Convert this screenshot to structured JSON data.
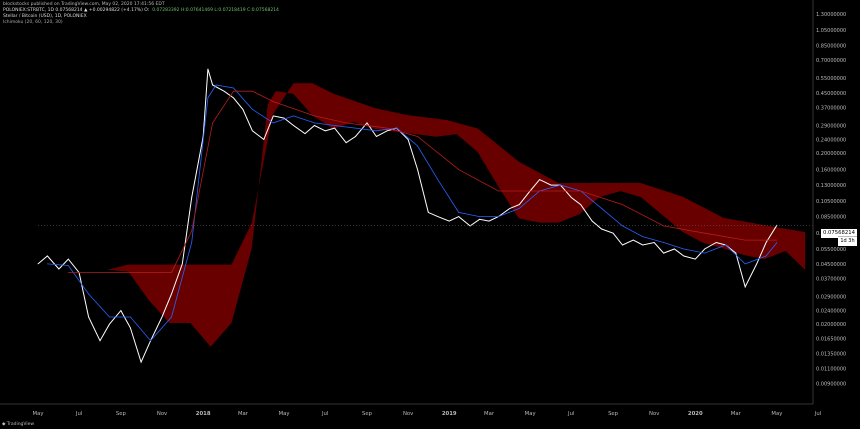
{
  "header": {
    "line1": "blockstocks published on TradingView.com, May 02, 2020 17:41:56 EDT",
    "line2": "POLONIEX:STRBTC, 1D  0.07568214 ▲ +0.00294822 (+4.17%)  O:",
    "line2_values": "0.07283392  H:0.07641469  L:0.07218419  C:0.07568214",
    "line3": "Stellar / Bitcoin (USD), 1D, POLONIEX",
    "line4": "Ichimoku (20, 60, 120, 30)"
  },
  "price_label": "0.07568214",
  "time_label": "1d 3h",
  "logo_text": "TradingView",
  "colors": {
    "background": "#000000",
    "price_line": "#ffffff",
    "conversion_line": "#2962ff",
    "base_line": "#b71c1c",
    "lagging_span": "#2e7d32",
    "cloud_bearish": "#7a0000",
    "cloud_bullish": "#1b5e20"
  },
  "chart_data": {
    "type": "line",
    "scale": "log",
    "ylim": [
      0.0076,
      1.3
    ],
    "y_ticks": [
      "1.30000000",
      "1.05000000",
      "0.85000000",
      "0.70000000",
      "0.55000000",
      "0.45000000",
      "0.37000000",
      "0.29000000",
      "0.24000000",
      "0.20000000",
      "0.16000000",
      "0.13000000",
      "0.10500000",
      "0.08500000",
      "0.06800000",
      "0.05500000",
      "0.04500000",
      "0.03700000",
      "0.02900000",
      "0.02400000",
      "0.02000000",
      "0.01650000",
      "0.01350000",
      "0.01100000",
      "0.00900000"
    ],
    "x_ticks": [
      {
        "label": "May",
        "date": "2017-05"
      },
      {
        "label": "Jul",
        "date": "2017-07"
      },
      {
        "label": "Sep",
        "date": "2017-09"
      },
      {
        "label": "Nov",
        "date": "2017-11"
      },
      {
        "label": "2018",
        "date": "2018-01"
      },
      {
        "label": "Mar",
        "date": "2018-03"
      },
      {
        "label": "May",
        "date": "2018-05"
      },
      {
        "label": "Jul",
        "date": "2018-07"
      },
      {
        "label": "Sep",
        "date": "2018-09"
      },
      {
        "label": "Nov",
        "date": "2018-11"
      },
      {
        "label": "2019",
        "date": "2019-01"
      },
      {
        "label": "Mar",
        "date": "2019-03"
      },
      {
        "label": "May",
        "date": "2019-05"
      },
      {
        "label": "Jul",
        "date": "2019-07"
      },
      {
        "label": "Sep",
        "date": "2019-09"
      },
      {
        "label": "Nov",
        "date": "2019-11"
      },
      {
        "label": "2020",
        "date": "2020-01"
      },
      {
        "label": "Mar",
        "date": "2020-03"
      },
      {
        "label": "May",
        "date": "2020-05"
      },
      {
        "label": "Jul",
        "date": "2020-07"
      }
    ],
    "last_price": 0.07568214,
    "series": [
      {
        "name": "",
        "role": "price",
        "x": [
          "2017-05-01",
          "2017-05-15",
          "2017-06-01",
          "2017-06-15",
          "2017-07-01",
          "2017-07-15",
          "2017-08-01",
          "2017-08-15",
          "2017-09-01",
          "2017-09-15",
          "2017-10-01",
          "2017-10-15",
          "2017-11-01",
          "2017-11-15",
          "2017-12-01",
          "2017-12-15",
          "2018-01-01",
          "2018-01-08",
          "2018-01-15",
          "2018-02-01",
          "2018-02-15",
          "2018-03-01",
          "2018-03-15",
          "2018-04-01",
          "2018-04-15",
          "2018-05-01",
          "2018-05-15",
          "2018-06-01",
          "2018-06-15",
          "2018-07-01",
          "2018-07-15",
          "2018-08-01",
          "2018-08-15",
          "2018-09-01",
          "2018-09-15",
          "2018-10-01",
          "2018-10-15",
          "2018-11-01",
          "2018-11-15",
          "2018-12-01",
          "2018-12-15",
          "2019-01-01",
          "2019-01-15",
          "2019-02-01",
          "2019-02-15",
          "2019-03-01",
          "2019-03-15",
          "2019-04-01",
          "2019-04-15",
          "2019-05-01",
          "2019-05-15",
          "2019-06-01",
          "2019-06-15",
          "2019-07-01",
          "2019-07-15",
          "2019-08-01",
          "2019-08-15",
          "2019-09-01",
          "2019-09-15",
          "2019-10-01",
          "2019-10-15",
          "2019-11-01",
          "2019-11-15",
          "2019-12-01",
          "2019-12-15",
          "2020-01-01",
          "2020-01-15",
          "2020-02-01",
          "2020-02-15",
          "2020-03-01",
          "2020-03-15",
          "2020-04-01",
          "2020-04-15",
          "2020-05-01"
        ],
        "values": [
          0.045,
          0.05,
          0.042,
          0.048,
          0.04,
          0.022,
          0.016,
          0.02,
          0.024,
          0.019,
          0.012,
          0.016,
          0.022,
          0.03,
          0.045,
          0.11,
          0.25,
          0.62,
          0.5,
          0.46,
          0.42,
          0.36,
          0.27,
          0.24,
          0.33,
          0.32,
          0.29,
          0.26,
          0.29,
          0.27,
          0.28,
          0.23,
          0.25,
          0.3,
          0.25,
          0.27,
          0.28,
          0.24,
          0.16,
          0.09,
          0.085,
          0.08,
          0.085,
          0.075,
          0.082,
          0.08,
          0.085,
          0.095,
          0.1,
          0.12,
          0.14,
          0.13,
          0.13,
          0.11,
          0.1,
          0.08,
          0.072,
          0.068,
          0.058,
          0.062,
          0.058,
          0.06,
          0.052,
          0.055,
          0.05,
          0.048,
          0.055,
          0.06,
          0.058,
          0.052,
          0.033,
          0.045,
          0.06,
          0.0757
        ]
      },
      {
        "name": "",
        "role": "conversion",
        "x": [
          "2017-05-15",
          "2017-06-15",
          "2017-07-15",
          "2017-08-15",
          "2017-09-15",
          "2017-10-15",
          "2017-11-15",
          "2017-12-15",
          "2018-01-08",
          "2018-01-20",
          "2018-02-15",
          "2018-03-15",
          "2018-04-15",
          "2018-05-15",
          "2018-06-15",
          "2018-07-15",
          "2018-08-15",
          "2018-09-15",
          "2018-10-15",
          "2018-11-15",
          "2018-12-15",
          "2019-01-15",
          "2019-02-15",
          "2019-03-15",
          "2019-04-15",
          "2019-05-15",
          "2019-06-15",
          "2019-07-15",
          "2019-08-15",
          "2019-09-15",
          "2019-10-15",
          "2019-11-15",
          "2019-12-15",
          "2020-01-15",
          "2020-02-15",
          "2020-03-15",
          "2020-04-15",
          "2020-05-01"
        ],
        "values": [
          0.045,
          0.044,
          0.03,
          0.022,
          0.022,
          0.016,
          0.022,
          0.06,
          0.42,
          0.5,
          0.48,
          0.36,
          0.3,
          0.33,
          0.3,
          0.29,
          0.28,
          0.27,
          0.28,
          0.22,
          0.14,
          0.09,
          0.085,
          0.085,
          0.095,
          0.12,
          0.13,
          0.12,
          0.095,
          0.075,
          0.065,
          0.06,
          0.055,
          0.052,
          0.058,
          0.045,
          0.05,
          0.06
        ]
      },
      {
        "name": "",
        "role": "base",
        "x": [
          "2017-06-15",
          "2017-08-01",
          "2017-10-01",
          "2017-11-15",
          "2017-12-15",
          "2018-01-15",
          "2018-02-15",
          "2018-03-15",
          "2018-04-15",
          "2018-06-15",
          "2018-08-01",
          "2018-10-01",
          "2018-11-15",
          "2019-01-15",
          "2019-03-15",
          "2019-05-15",
          "2019-07-15",
          "2019-09-15",
          "2019-11-15",
          "2020-01-15",
          "2020-03-15",
          "2020-05-01"
        ],
        "values": [
          0.04,
          0.04,
          0.04,
          0.04,
          0.07,
          0.3,
          0.46,
          0.46,
          0.4,
          0.33,
          0.3,
          0.28,
          0.25,
          0.16,
          0.12,
          0.12,
          0.12,
          0.1,
          0.075,
          0.068,
          0.062,
          0.062
        ]
      }
    ]
  }
}
